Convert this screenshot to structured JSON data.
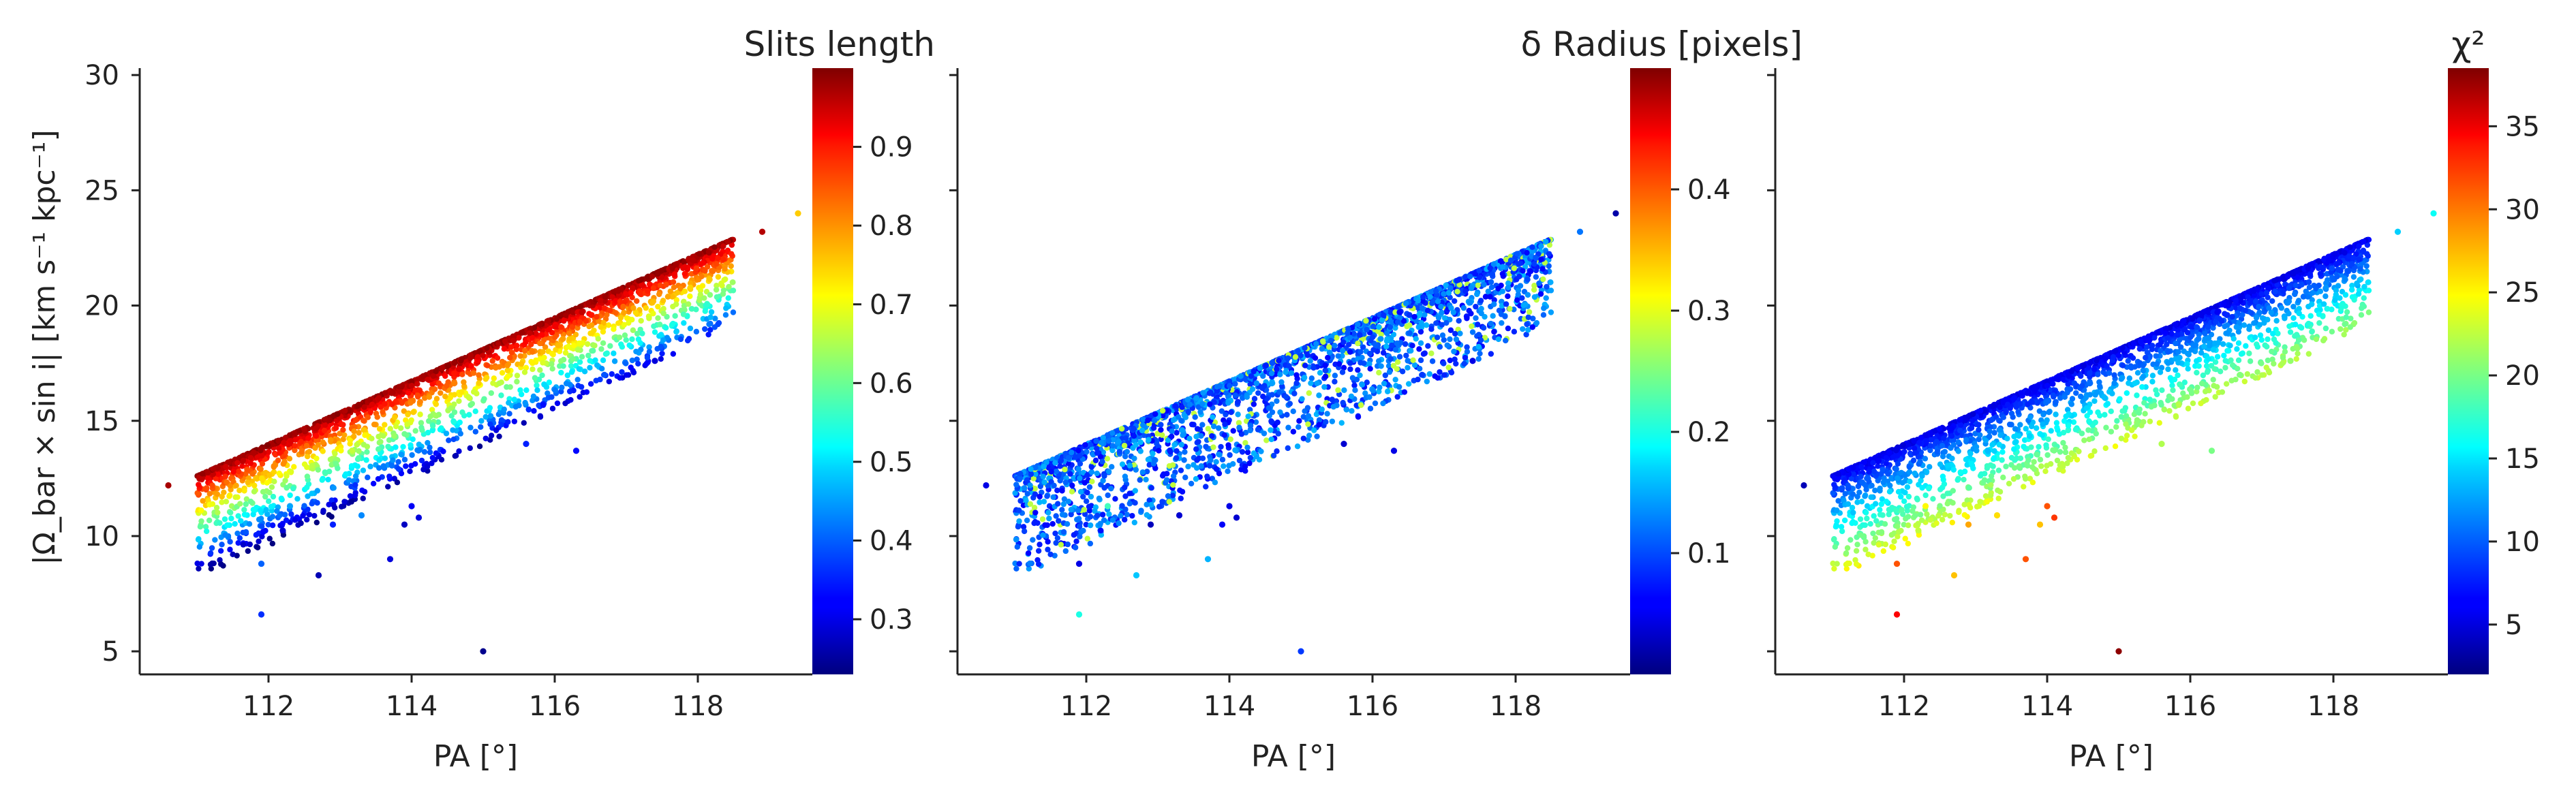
{
  "chart_data": [
    {
      "type": "scatter",
      "xlabel": "PA [°]",
      "ylabel": "|Ω_bar × sin i|   [km s⁻¹ kpc⁻¹]",
      "xlim": [
        110.2,
        119.6
      ],
      "ylim": [
        4.0,
        30.3
      ],
      "x_ticks": [
        112,
        114,
        116,
        118
      ],
      "y_ticks": [
        5,
        10,
        15,
        20,
        25,
        30
      ],
      "colormap": "jet",
      "colorbar": {
        "title": "Slits length",
        "range": [
          0.23,
          1.0
        ],
        "ticks": [
          0.3,
          0.4,
          0.5,
          0.6,
          0.7,
          0.8,
          0.9
        ]
      },
      "trend": {
        "x_start": 111.0,
        "x_end": 118.5,
        "y_top_start": 12.6,
        "y_top_end": 22.9,
        "spread_max": 4.6
      },
      "outliers": [
        {
          "x": 110.6,
          "y": 12.2,
          "c": 0.97
        },
        {
          "x": 119.4,
          "y": 24.0,
          "c": 0.75
        },
        {
          "x": 118.9,
          "y": 23.2,
          "c": 0.96
        },
        {
          "x": 111.9,
          "y": 8.8,
          "c": 0.4
        },
        {
          "x": 111.9,
          "y": 6.6,
          "c": 0.36
        },
        {
          "x": 112.7,
          "y": 8.3,
          "c": 0.27
        },
        {
          "x": 113.7,
          "y": 9.0,
          "c": 0.3
        },
        {
          "x": 114.0,
          "y": 11.3,
          "c": 0.32
        },
        {
          "x": 114.1,
          "y": 10.8,
          "c": 0.3
        },
        {
          "x": 113.9,
          "y": 10.5,
          "c": 0.28
        },
        {
          "x": 115.0,
          "y": 5.0,
          "c": 0.24
        },
        {
          "x": 115.6,
          "y": 14.0,
          "c": 0.35
        },
        {
          "x": 116.3,
          "y": 13.7,
          "c": 0.33
        },
        {
          "x": 117.4,
          "y": 17.6,
          "c": 0.3
        },
        {
          "x": 112.3,
          "y": 11.3,
          "c": 0.45
        },
        {
          "x": 112.9,
          "y": 10.5,
          "c": 0.35
        },
        {
          "x": 113.3,
          "y": 10.9,
          "c": 0.43
        }
      ]
    },
    {
      "type": "scatter",
      "xlabel": "PA [°]",
      "ylabel": "",
      "xlim": [
        110.2,
        119.6
      ],
      "ylim": [
        4.0,
        30.3
      ],
      "x_ticks": [
        112,
        114,
        116,
        118
      ],
      "y_ticks": [
        5,
        10,
        15,
        20,
        25,
        30
      ],
      "colormap": "jet",
      "colorbar": {
        "title": "δ Radius [pixels]",
        "range": [
          0.0,
          0.5
        ],
        "ticks": [
          0.1,
          0.2,
          0.3,
          0.4
        ]
      },
      "trend": {
        "x_start": 111.0,
        "x_end": 118.5,
        "y_top_start": 12.6,
        "y_top_end": 22.9,
        "spread_max": 4.6
      },
      "outliers": [
        {
          "x": 110.6,
          "y": 12.2,
          "c": 0.05
        },
        {
          "x": 119.4,
          "y": 24.0,
          "c": 0.02
        },
        {
          "x": 118.9,
          "y": 23.2,
          "c": 0.12
        },
        {
          "x": 111.9,
          "y": 8.8,
          "c": 0.05
        },
        {
          "x": 111.9,
          "y": 6.6,
          "c": 0.2
        },
        {
          "x": 112.7,
          "y": 8.3,
          "c": 0.16
        },
        {
          "x": 113.7,
          "y": 9.0,
          "c": 0.15
        },
        {
          "x": 114.0,
          "y": 11.3,
          "c": 0.05
        },
        {
          "x": 114.1,
          "y": 10.8,
          "c": 0.04
        },
        {
          "x": 113.9,
          "y": 10.5,
          "c": 0.06
        },
        {
          "x": 115.0,
          "y": 5.0,
          "c": 0.09
        },
        {
          "x": 115.6,
          "y": 14.0,
          "c": 0.04
        },
        {
          "x": 116.3,
          "y": 13.7,
          "c": 0.05
        },
        {
          "x": 117.4,
          "y": 17.6,
          "c": 0.05
        },
        {
          "x": 112.3,
          "y": 11.3,
          "c": 0.22
        },
        {
          "x": 112.9,
          "y": 10.5,
          "c": 0.03
        },
        {
          "x": 113.3,
          "y": 10.9,
          "c": 0.04
        }
      ]
    },
    {
      "type": "scatter",
      "xlabel": "PA [°]",
      "ylabel": "",
      "xlim": [
        110.2,
        119.6
      ],
      "ylim": [
        4.0,
        30.3
      ],
      "x_ticks": [
        112,
        114,
        116,
        118
      ],
      "y_ticks": [
        5,
        10,
        15,
        20,
        25,
        30
      ],
      "colormap": "jet",
      "colorbar": {
        "title": "χ²",
        "range": [
          2.0,
          38.5
        ],
        "ticks": [
          5,
          10,
          15,
          20,
          25,
          30,
          35
        ]
      },
      "trend": {
        "x_start": 111.0,
        "x_end": 118.5,
        "y_top_start": 12.6,
        "y_top_end": 22.9,
        "spread_max": 4.6
      },
      "outliers": [
        {
          "x": 110.6,
          "y": 12.2,
          "c": 4
        },
        {
          "x": 119.4,
          "y": 24.0,
          "c": 16
        },
        {
          "x": 118.9,
          "y": 23.2,
          "c": 14
        },
        {
          "x": 111.9,
          "y": 8.8,
          "c": 31
        },
        {
          "x": 111.9,
          "y": 6.6,
          "c": 34
        },
        {
          "x": 112.7,
          "y": 8.3,
          "c": 27
        },
        {
          "x": 113.7,
          "y": 9.0,
          "c": 31
        },
        {
          "x": 114.0,
          "y": 11.3,
          "c": 31
        },
        {
          "x": 114.1,
          "y": 10.8,
          "c": 32
        },
        {
          "x": 113.9,
          "y": 10.5,
          "c": 27
        },
        {
          "x": 115.0,
          "y": 5.0,
          "c": 38
        },
        {
          "x": 115.6,
          "y": 14.0,
          "c": 22
        },
        {
          "x": 116.3,
          "y": 13.7,
          "c": 20
        },
        {
          "x": 117.4,
          "y": 17.6,
          "c": 21
        },
        {
          "x": 112.3,
          "y": 11.3,
          "c": 25
        },
        {
          "x": 112.9,
          "y": 10.5,
          "c": 28
        },
        {
          "x": 113.3,
          "y": 10.9,
          "c": 26
        }
      ]
    }
  ]
}
